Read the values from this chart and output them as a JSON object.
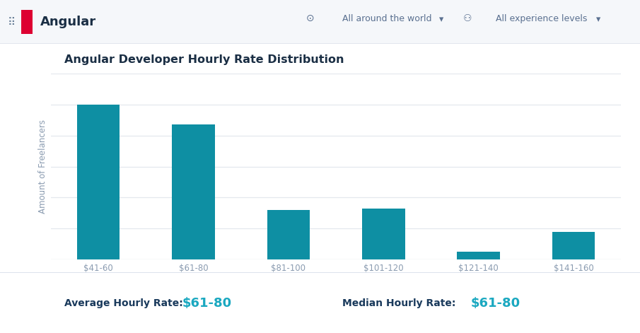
{
  "title": "Angular Developer Hourly Rate Distribution",
  "categories": [
    "$41-60",
    "$61-80",
    "$81-100",
    "$101-120",
    "$121-140",
    "$141-160"
  ],
  "values": [
    100,
    87,
    32,
    33,
    5,
    18
  ],
  "bar_color": "#0e8fa3",
  "ylabel": "Amount of Freelancers",
  "background_color": "#ffffff",
  "grid_color": "#e4e8ee",
  "title_color": "#1a2e44",
  "tick_color": "#8a9bb0",
  "avg_label": "Average Hourly Rate:",
  "avg_value": "$61-80",
  "med_label": "Median Hourly Rate:",
  "med_value": "$61-80",
  "stat_label_color": "#1a3a5c",
  "stat_value_color": "#1aa8c0",
  "header_bg": "#f5f7fa",
  "header_border": "#dde3ec",
  "header_text_color": "#1a2e44",
  "header_sub_color": "#5a7090",
  "ylim_max": 118
}
